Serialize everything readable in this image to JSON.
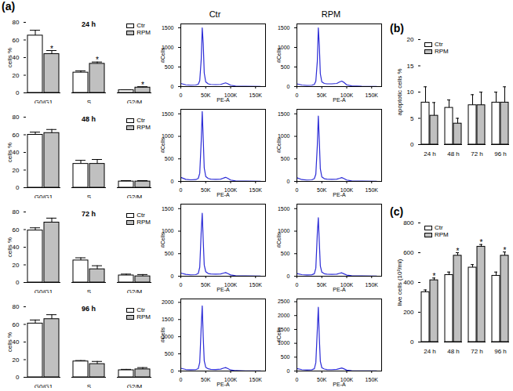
{
  "chart_data": [
    {
      "type": "bar",
      "title": "24 h",
      "ylabel": "cells %",
      "categories": [
        "G0/G1",
        "S",
        "G2/M"
      ],
      "series": [
        {
          "name": "Ctr",
          "color": "#ffffff",
          "values": [
            65,
            23,
            3
          ],
          "errors": [
            6,
            2,
            0.5
          ]
        },
        {
          "name": "RPM",
          "color": "#c0c0c0",
          "values": [
            44,
            33,
            6
          ],
          "errors": [
            4,
            2,
            1
          ],
          "significance": [
            "*",
            "*",
            "*"
          ]
        }
      ],
      "ylim": [
        0,
        80
      ],
      "yticks": [
        0,
        20,
        40,
        60,
        80
      ],
      "legend": "top-right",
      "annotations": [
        "(a)"
      ]
    },
    {
      "type": "line",
      "title": "Ctr",
      "xlabel": "PE-A",
      "ylabel": "#Cells",
      "color": "#2b2bd6",
      "x": [
        0,
        10000,
        20000,
        30000,
        35000,
        38000,
        41000,
        43000,
        45000,
        47000,
        50000,
        55000,
        60000,
        70000,
        80000,
        86000,
        90000,
        94000,
        100000,
        110000,
        130000,
        160000
      ],
      "values": [
        80,
        45,
        35,
        40,
        60,
        150,
        700,
        1500,
        1100,
        350,
        120,
        70,
        55,
        50,
        55,
        80,
        95,
        75,
        35,
        15,
        8,
        4
      ],
      "xlim": [
        0,
        170000
      ],
      "xticks": [
        0,
        {
          "value": 50000,
          "label": "50K"
        },
        {
          "value": 100000,
          "label": "100K"
        },
        {
          "value": 150000,
          "label": "150K"
        }
      ],
      "ylim": [
        0,
        1600
      ],
      "yticks": [
        0,
        500,
        1000,
        1500
      ]
    },
    {
      "type": "line",
      "title": "RPM",
      "xlabel": "PE-A",
      "ylabel": "#Cells",
      "color": "#2b2bd6",
      "x": [
        0,
        10000,
        20000,
        30000,
        35000,
        38000,
        41000,
        43000,
        45000,
        47000,
        50000,
        55000,
        60000,
        70000,
        80000,
        86000,
        90000,
        94000,
        100000,
        110000,
        130000,
        160000
      ],
      "values": [
        70,
        40,
        30,
        35,
        55,
        140,
        650,
        1500,
        1050,
        330,
        120,
        80,
        70,
        70,
        80,
        120,
        140,
        110,
        45,
        18,
        8,
        4
      ],
      "xlim": [
        0,
        170000
      ],
      "xticks": [
        0,
        {
          "value": 50000,
          "label": "50K"
        },
        {
          "value": 100000,
          "label": "100K"
        },
        {
          "value": 150000,
          "label": "150K"
        }
      ],
      "ylim": [
        0,
        1600
      ],
      "yticks": [
        0,
        500,
        1000,
        1500
      ]
    },
    {
      "type": "bar",
      "title": "48 h",
      "ylabel": "cells %",
      "categories": [
        "G0/G1",
        "S",
        "G2/M"
      ],
      "series": [
        {
          "name": "Ctr",
          "color": "#ffffff",
          "values": [
            60,
            27,
            7
          ],
          "errors": [
            3,
            4,
            1
          ]
        },
        {
          "name": "RPM",
          "color": "#c0c0c0",
          "values": [
            62,
            27,
            7
          ],
          "errors": [
            4,
            5,
            1
          ]
        }
      ],
      "ylim": [
        0,
        80
      ],
      "yticks": [
        0,
        20,
        40,
        60,
        80
      ],
      "legend": "top-right"
    },
    {
      "type": "line",
      "xlabel": "PE-A",
      "ylabel": "#Cells",
      "color": "#2b2bd6",
      "x": [
        0,
        10000,
        20000,
        30000,
        35000,
        38000,
        41000,
        43000,
        45000,
        47000,
        50000,
        55000,
        60000,
        70000,
        80000,
        86000,
        90000,
        94000,
        100000,
        110000,
        130000,
        160000
      ],
      "values": [
        90,
        45,
        35,
        40,
        65,
        180,
        900,
        1550,
        950,
        300,
        110,
        65,
        50,
        45,
        50,
        75,
        90,
        70,
        30,
        12,
        6,
        3
      ],
      "xlim": [
        0,
        170000
      ],
      "xticks": [
        0,
        {
          "value": 50000,
          "label": "50K"
        },
        {
          "value": 100000,
          "label": "100K"
        },
        {
          "value": 150000,
          "label": "150K"
        }
      ],
      "ylim": [
        0,
        1600
      ],
      "yticks": [
        0,
        500,
        1000,
        1500
      ]
    },
    {
      "type": "line",
      "xlabel": "PE-A",
      "ylabel": "#Cells",
      "color": "#2b2bd6",
      "x": [
        0,
        10000,
        20000,
        30000,
        35000,
        38000,
        41000,
        43000,
        45000,
        47000,
        50000,
        55000,
        60000,
        70000,
        80000,
        86000,
        90000,
        94000,
        100000,
        110000,
        130000,
        160000
      ],
      "values": [
        80,
        40,
        30,
        35,
        60,
        160,
        800,
        1450,
        900,
        280,
        100,
        60,
        50,
        45,
        50,
        70,
        85,
        65,
        30,
        12,
        6,
        3
      ],
      "xlim": [
        0,
        170000
      ],
      "xticks": [
        0,
        {
          "value": 50000,
          "label": "50K"
        },
        {
          "value": 100000,
          "label": "100K"
        },
        {
          "value": 150000,
          "label": "150K"
        }
      ],
      "ylim": [
        0,
        1600
      ],
      "yticks": [
        0,
        500,
        1000,
        1500
      ]
    },
    {
      "type": "bar",
      "title": "72 h",
      "ylabel": "cells %",
      "categories": [
        "G0/G1",
        "S",
        "G2/M"
      ],
      "series": [
        {
          "name": "Ctr",
          "color": "#ffffff",
          "values": [
            59,
            25,
            8
          ],
          "errors": [
            3,
            3,
            1.5
          ]
        },
        {
          "name": "RPM",
          "color": "#c0c0c0",
          "values": [
            68,
            15,
            7
          ],
          "errors": [
            5,
            4,
            2
          ]
        }
      ],
      "ylim": [
        0,
        80
      ],
      "yticks": [
        0,
        20,
        40,
        60,
        80
      ],
      "legend": "top-right"
    },
    {
      "type": "line",
      "xlabel": "PE-A",
      "ylabel": "#Cells",
      "color": "#2b2bd6",
      "x": [
        0,
        10000,
        20000,
        30000,
        35000,
        38000,
        41000,
        43000,
        45000,
        47000,
        50000,
        55000,
        60000,
        70000,
        80000,
        86000,
        90000,
        94000,
        100000,
        110000,
        130000,
        160000
      ],
      "values": [
        70,
        40,
        30,
        35,
        60,
        200,
        1000,
        1400,
        800,
        250,
        100,
        60,
        50,
        45,
        50,
        70,
        80,
        60,
        28,
        12,
        6,
        3
      ],
      "xlim": [
        0,
        170000
      ],
      "xticks": [
        0,
        {
          "value": 50000,
          "label": "50K"
        },
        {
          "value": 100000,
          "label": "100K"
        },
        {
          "value": 150000,
          "label": "150K"
        }
      ],
      "ylim": [
        0,
        1600
      ],
      "yticks": [
        0,
        500,
        1000,
        1500
      ]
    },
    {
      "type": "line",
      "xlabel": "PE-A",
      "ylabel": "#Cells",
      "color": "#2b2bd6",
      "x": [
        0,
        10000,
        20000,
        30000,
        35000,
        38000,
        41000,
        43000,
        45000,
        47000,
        50000,
        55000,
        60000,
        70000,
        80000,
        86000,
        90000,
        94000,
        100000,
        110000,
        130000,
        160000
      ],
      "values": [
        60,
        35,
        28,
        32,
        55,
        180,
        950,
        1300,
        750,
        230,
        90,
        55,
        45,
        40,
        45,
        65,
        75,
        55,
        25,
        10,
        5,
        3
      ],
      "xlim": [
        0,
        170000
      ],
      "xticks": [
        0,
        {
          "value": 50000,
          "label": "50K"
        },
        {
          "value": 100000,
          "label": "100K"
        },
        {
          "value": 150000,
          "label": "150K"
        }
      ],
      "ylim": [
        0,
        1600
      ],
      "yticks": [
        0,
        500,
        1000,
        1500
      ]
    },
    {
      "type": "bar",
      "title": "96 h",
      "ylabel": "cells %",
      "categories": [
        "G0/G1",
        "S",
        "G2/M"
      ],
      "series": [
        {
          "name": "Ctr",
          "color": "#ffffff",
          "values": [
            61,
            18,
            8
          ],
          "errors": [
            4,
            1,
            1
          ]
        },
        {
          "name": "RPM",
          "color": "#c0c0c0",
          "values": [
            66,
            15,
            9
          ],
          "errors": [
            5,
            3,
            2
          ]
        }
      ],
      "ylim": [
        0,
        80
      ],
      "yticks": [
        0,
        20,
        40,
        60,
        80
      ],
      "legend": "top-right"
    },
    {
      "type": "line",
      "xlabel": "PE-A",
      "ylabel": "#Cells",
      "color": "#2b2bd6",
      "x": [
        0,
        10000,
        20000,
        30000,
        35000,
        38000,
        41000,
        43000,
        45000,
        47000,
        50000,
        55000,
        60000,
        70000,
        80000,
        86000,
        90000,
        94000,
        100000,
        110000,
        130000,
        160000
      ],
      "values": [
        80,
        45,
        35,
        40,
        70,
        250,
        1300,
        1900,
        1000,
        300,
        110,
        65,
        50,
        45,
        55,
        85,
        100,
        75,
        30,
        12,
        6,
        3
      ],
      "xlim": [
        0,
        170000
      ],
      "xticks": [
        0,
        {
          "value": 50000,
          "label": "50K"
        },
        {
          "value": 100000,
          "label": "100K"
        },
        {
          "value": 150000,
          "label": "150K"
        }
      ],
      "ylim": [
        0,
        2100
      ],
      "yticks": [
        0,
        500,
        1000,
        1500,
        2000
      ]
    },
    {
      "type": "line",
      "xlabel": "PE-A",
      "ylabel": "#Cells",
      "color": "#2b2bd6",
      "x": [
        0,
        10000,
        20000,
        30000,
        35000,
        38000,
        41000,
        43000,
        45000,
        47000,
        50000,
        55000,
        60000,
        70000,
        80000,
        86000,
        90000,
        94000,
        100000,
        110000,
        130000,
        160000
      ],
      "values": [
        90,
        50,
        40,
        45,
        80,
        300,
        1500,
        2300,
        1200,
        350,
        120,
        70,
        55,
        50,
        60,
        90,
        110,
        80,
        32,
        12,
        6,
        3
      ],
      "xlim": [
        0,
        170000
      ],
      "xticks": [
        0,
        {
          "value": 50000,
          "label": "50K"
        },
        {
          "value": 100000,
          "label": "100K"
        },
        {
          "value": 150000,
          "label": "150K"
        }
      ],
      "ylim": [
        0,
        2600
      ],
      "yticks": [
        0,
        500,
        1000,
        1500,
        2000,
        2500
      ]
    },
    {
      "type": "bar",
      "ylabel": "apoptotic cells %",
      "categories": [
        "24 h",
        "48 h",
        "72 h",
        "96 h"
      ],
      "series": [
        {
          "name": "Ctr",
          "color": "#ffffff",
          "values": [
            8,
            7,
            7.5,
            8
          ],
          "errors": [
            3,
            1.5,
            2,
            2
          ]
        },
        {
          "name": "RPM",
          "color": "#c0c0c0",
          "values": [
            5.5,
            4,
            7.5,
            8
          ],
          "errors": [
            2.5,
            1,
            2.5,
            3
          ]
        }
      ],
      "ylim": [
        0,
        20
      ],
      "yticks": [
        0,
        5,
        10,
        15,
        20
      ],
      "legend": "top-left",
      "annotations": [
        "(b)"
      ]
    },
    {
      "type": "bar",
      "ylabel": "live cells (10³/ml)",
      "categories": [
        "24 h",
        "48 h",
        "72 h",
        "96 h"
      ],
      "series": [
        {
          "name": "Ctr",
          "color": "#ffffff",
          "values": [
            335,
            450,
            500,
            445
          ],
          "errors": [
            15,
            20,
            20,
            25
          ]
        },
        {
          "name": "RPM",
          "color": "#c0c0c0",
          "values": [
            415,
            580,
            640,
            580
          ],
          "errors": [
            15,
            20,
            15,
            25
          ],
          "significance": [
            "*",
            "*",
            "*",
            "*"
          ]
        }
      ],
      "ylim": [
        0,
        800
      ],
      "yticks": [
        0,
        200,
        400,
        600,
        800
      ],
      "legend": "top-left",
      "annotations": [
        "(c)"
      ]
    }
  ]
}
